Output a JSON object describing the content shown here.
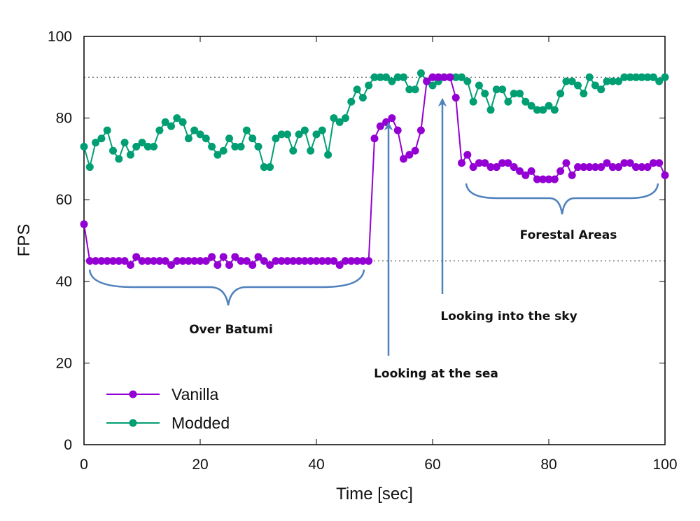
{
  "chart_data": {
    "type": "line",
    "xlabel": "Time [sec]",
    "ylabel": "FPS",
    "xlim": [
      0,
      100
    ],
    "ylim": [
      0,
      100
    ],
    "xticks": [
      0,
      20,
      40,
      60,
      80,
      100
    ],
    "yticks": [
      0,
      20,
      40,
      60,
      80,
      100
    ],
    "grid": false,
    "legend": "bottom-left",
    "reference_lines": [
      90,
      45
    ],
    "series": [
      {
        "name": "Vanilla",
        "color": "#9400d3",
        "values": [
          54,
          45,
          45,
          45,
          45,
          45,
          45,
          45,
          44,
          46,
          45,
          45,
          45,
          45,
          45,
          44,
          45,
          45,
          45,
          45,
          45,
          45,
          46,
          44,
          46,
          44,
          46,
          45,
          45,
          44,
          46,
          45,
          44,
          45,
          45,
          45,
          45,
          45,
          45,
          45,
          45,
          45,
          45,
          45,
          44,
          45,
          45,
          45,
          45,
          45,
          75,
          78,
          79,
          80,
          77,
          70,
          71,
          72,
          77,
          89,
          90,
          90,
          90,
          90,
          85,
          69,
          71,
          68,
          69,
          69,
          68,
          68,
          69,
          69,
          68,
          67,
          66,
          67,
          65,
          65,
          65,
          65,
          67,
          69,
          66,
          68,
          68,
          68,
          68,
          68,
          69,
          68,
          68,
          69,
          69,
          68,
          68,
          68,
          69,
          69,
          66
        ]
      },
      {
        "name": "Modded",
        "color": "#009e73",
        "values": [
          73,
          68,
          74,
          75,
          77,
          72,
          70,
          74,
          71,
          73,
          74,
          73,
          73,
          77,
          79,
          78,
          80,
          79,
          75,
          77,
          76,
          75,
          73,
          71,
          72,
          75,
          73,
          73,
          77,
          75,
          73,
          68,
          68,
          75,
          76,
          76,
          72,
          76,
          77,
          72,
          76,
          77,
          71,
          80,
          79,
          80,
          84,
          87,
          85,
          88,
          90,
          90,
          90,
          89,
          90,
          90,
          87,
          87,
          91,
          89,
          88,
          89,
          90,
          90,
          90,
          90,
          89,
          84,
          88,
          86,
          82,
          87,
          87,
          84,
          86,
          86,
          84,
          83,
          82,
          82,
          83,
          82,
          86,
          89,
          89,
          88,
          86,
          90,
          88,
          87,
          89,
          89,
          89,
          90,
          90,
          90,
          90,
          90,
          90,
          89,
          90
        ]
      }
    ],
    "annotations": [
      {
        "text": "Over Batumi",
        "type": "brace",
        "x_range": [
          1,
          48
        ]
      },
      {
        "text": "Looking at the sea",
        "type": "arrow",
        "x": 52.5
      },
      {
        "text": "Looking into the sky",
        "type": "arrow",
        "x": 61.8
      },
      {
        "text": "Forestal Areas",
        "type": "brace",
        "x_range": [
          66,
          99
        ]
      }
    ]
  }
}
